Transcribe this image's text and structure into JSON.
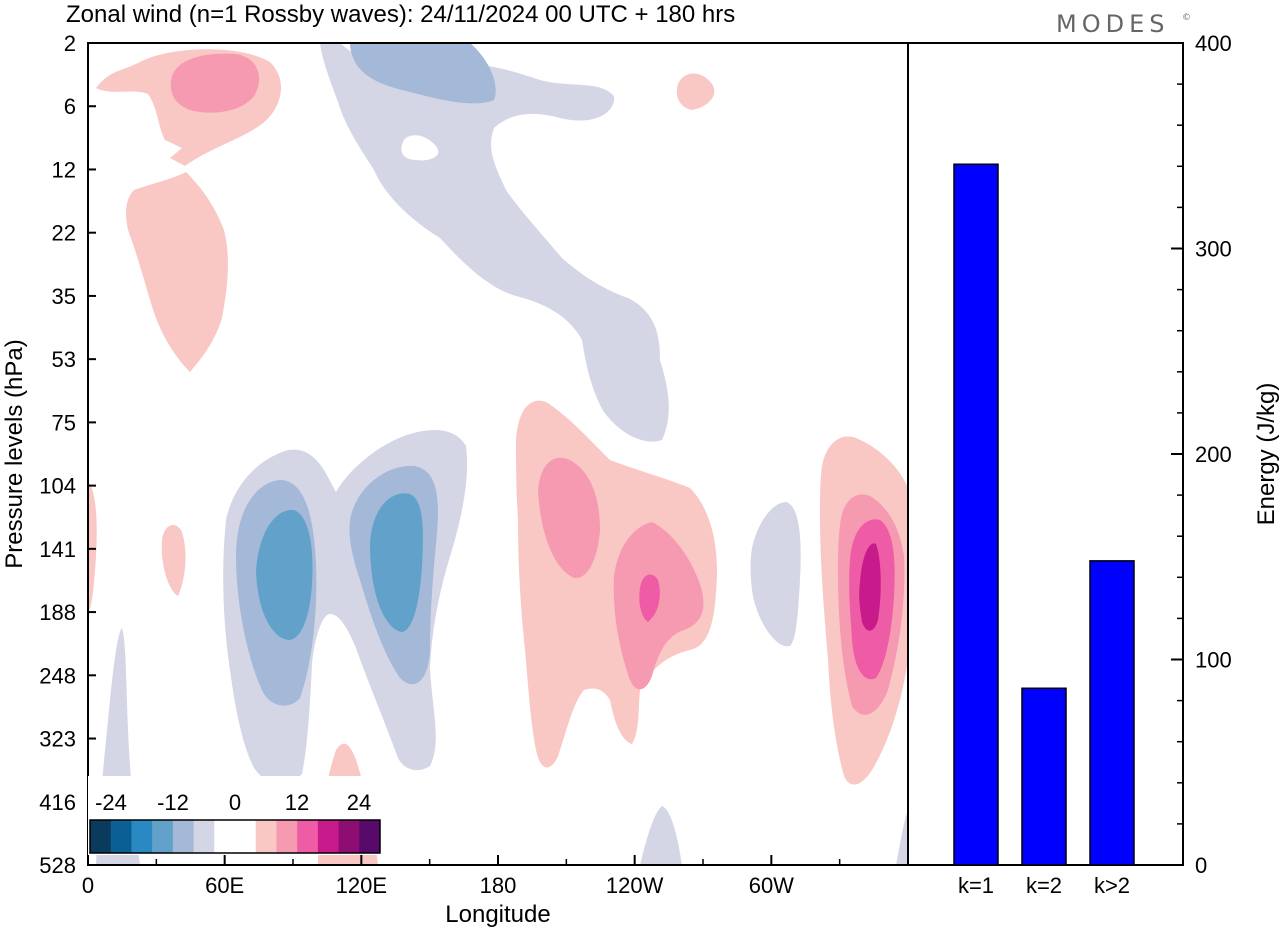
{
  "title": "Zonal wind (n=1 Rossby waves):  24/11/2024  00 UTC  + 180 hrs",
  "brand": "MODES",
  "brand_mark": "©",
  "colors": {
    "neg_light": "#d4d6e6",
    "neg_mid": "#a4b8d8",
    "neg_dark": "#62a2ca",
    "pos_light": "#f9c8c5",
    "pos_mid": "#f69ab2",
    "pos_dark": "#ef5ca6",
    "pos_darker": "#c81b8b",
    "bar": "#0000ff"
  },
  "chart_data": [
    {
      "type": "heatmap",
      "title": "Zonal wind (n=1 Rossby waves)",
      "xlabel": "Longitude",
      "ylabel": "Pressure levels (hPa)",
      "x_ticks": [
        "0",
        "60E",
        "120E",
        "180",
        "120W",
        "60W"
      ],
      "x_tick_degrees": [
        0,
        60,
        120,
        180,
        240,
        300
      ],
      "xlim": [
        0,
        360
      ],
      "y_ticks": [
        "2",
        "6",
        "12",
        "22",
        "35",
        "53",
        "75",
        "104",
        "141",
        "188",
        "248",
        "323",
        "416",
        "528"
      ],
      "colorbar": {
        "labels": [
          "-24",
          "-12",
          "0",
          "12",
          "24"
        ],
        "colors": [
          "#0a3a5c",
          "#0a5f94",
          "#2a88c2",
          "#62a2ca",
          "#a4b8d8",
          "#d4d6e6",
          "#ffffff",
          "#ffffff",
          "#f9c8c5",
          "#f69ab2",
          "#ef5ca6",
          "#c81b8b",
          "#8e0d72",
          "#580a6a"
        ]
      },
      "features": [
        {
          "sign": "positive",
          "level": 2,
          "lon_deg": 40,
          "pressure_hpa": 4
        },
        {
          "sign": "positive",
          "level": 1,
          "lon_deg": 40,
          "pressure_hpa": 30
        },
        {
          "sign": "negative",
          "level": 2,
          "lon_deg": 125,
          "pressure_hpa": 3
        },
        {
          "sign": "negative",
          "level": 1,
          "lon_deg": 190,
          "pressure_hpa": 40
        },
        {
          "sign": "negative",
          "level": 3,
          "lon_deg": 80,
          "pressure_hpa": 150
        },
        {
          "sign": "negative",
          "level": 3,
          "lon_deg": 132,
          "pressure_hpa": 140
        },
        {
          "sign": "positive",
          "level": 2,
          "lon_deg": 210,
          "pressure_hpa": 120
        },
        {
          "sign": "positive",
          "level": 3,
          "lon_deg": 234,
          "pressure_hpa": 165
        },
        {
          "sign": "positive",
          "level": 4,
          "lon_deg": 345,
          "pressure_hpa": 165
        },
        {
          "sign": "negative",
          "level": 1,
          "lon_deg": 295,
          "pressure_hpa": 150
        }
      ]
    },
    {
      "type": "bar",
      "categories": [
        "k=1",
        "k=2",
        "k>2"
      ],
      "values": [
        341,
        86,
        148
      ],
      "ylabel": "Energy (J/kg)",
      "ylim": [
        0,
        400
      ],
      "y_ticks": [
        "0",
        "100",
        "200",
        "300",
        "400"
      ]
    }
  ]
}
